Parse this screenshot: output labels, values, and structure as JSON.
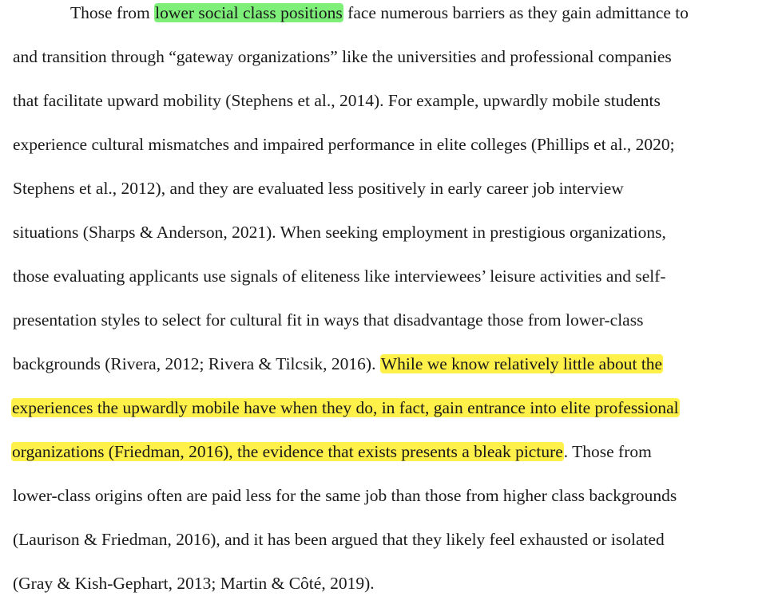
{
  "document": {
    "paragraph": {
      "lines": [
        {
          "segments": [
            {
              "text": "Those from ",
              "highlight": "none"
            },
            {
              "text": "lower social class positions",
              "highlight": "green"
            },
            {
              "text": " face numerous barriers as they gain admittance to",
              "highlight": "none"
            }
          ]
        },
        {
          "segments": [
            {
              "text": "and transition through “gateway organizations” like the universities and professional companies",
              "highlight": "none"
            }
          ]
        },
        {
          "segments": [
            {
              "text": "that facilitate upward mobility (Stephens et al., 2014). For example, upwardly mobile students",
              "highlight": "none"
            }
          ]
        },
        {
          "segments": [
            {
              "text": "experience cultural mismatches and impaired performance in elite colleges (Phillips et al., 2020;",
              "highlight": "none"
            }
          ]
        },
        {
          "segments": [
            {
              "text": "Stephens et al., 2012), and they are evaluated less positively in early career job interview",
              "highlight": "none"
            }
          ]
        },
        {
          "segments": [
            {
              "text": "situations (Sharps & Anderson, 2021). When seeking employment in prestigious organizations,",
              "highlight": "none"
            }
          ]
        },
        {
          "segments": [
            {
              "text": "those evaluating applicants use signals of eliteness like interviewees’ leisure activities and self-",
              "highlight": "none"
            }
          ]
        },
        {
          "segments": [
            {
              "text": "presentation styles to select for cultural fit in ways that disadvantage those from lower-class",
              "highlight": "none"
            }
          ]
        },
        {
          "segments": [
            {
              "text": "backgrounds (Rivera, 2012; Rivera & Tilcsik, 2016). ",
              "highlight": "none"
            },
            {
              "text": "While we know relatively little about the",
              "highlight": "yellow"
            }
          ]
        },
        {
          "segments": [
            {
              "text": "experiences the upwardly mobile have when they do, in fact, gain entrance into elite professional",
              "highlight": "yellow"
            }
          ]
        },
        {
          "segments": [
            {
              "text": "organizations (Friedman, 2016), the evidence that exists presents a bleak picture",
              "highlight": "yellow"
            },
            {
              "text": ". Those from",
              "highlight": "none"
            }
          ]
        },
        {
          "segments": [
            {
              "text": "lower-class origins often are paid less for the same job than those from higher class backgrounds",
              "highlight": "none"
            }
          ]
        },
        {
          "segments": [
            {
              "text": "(Laurison & Friedman, 2016), and it has been argued that they likely feel exhausted or isolated",
              "highlight": "none"
            }
          ]
        },
        {
          "segments": [
            {
              "text": "(Gray & Kish-Gephart, 2013; Martin & Côté, 2019).",
              "highlight": "none"
            }
          ]
        }
      ]
    },
    "colors": {
      "text": "#1a1a1a",
      "highlight_green": "#7ef07a",
      "highlight_yellow": "#fff04a",
      "background": "#ffffff"
    }
  }
}
